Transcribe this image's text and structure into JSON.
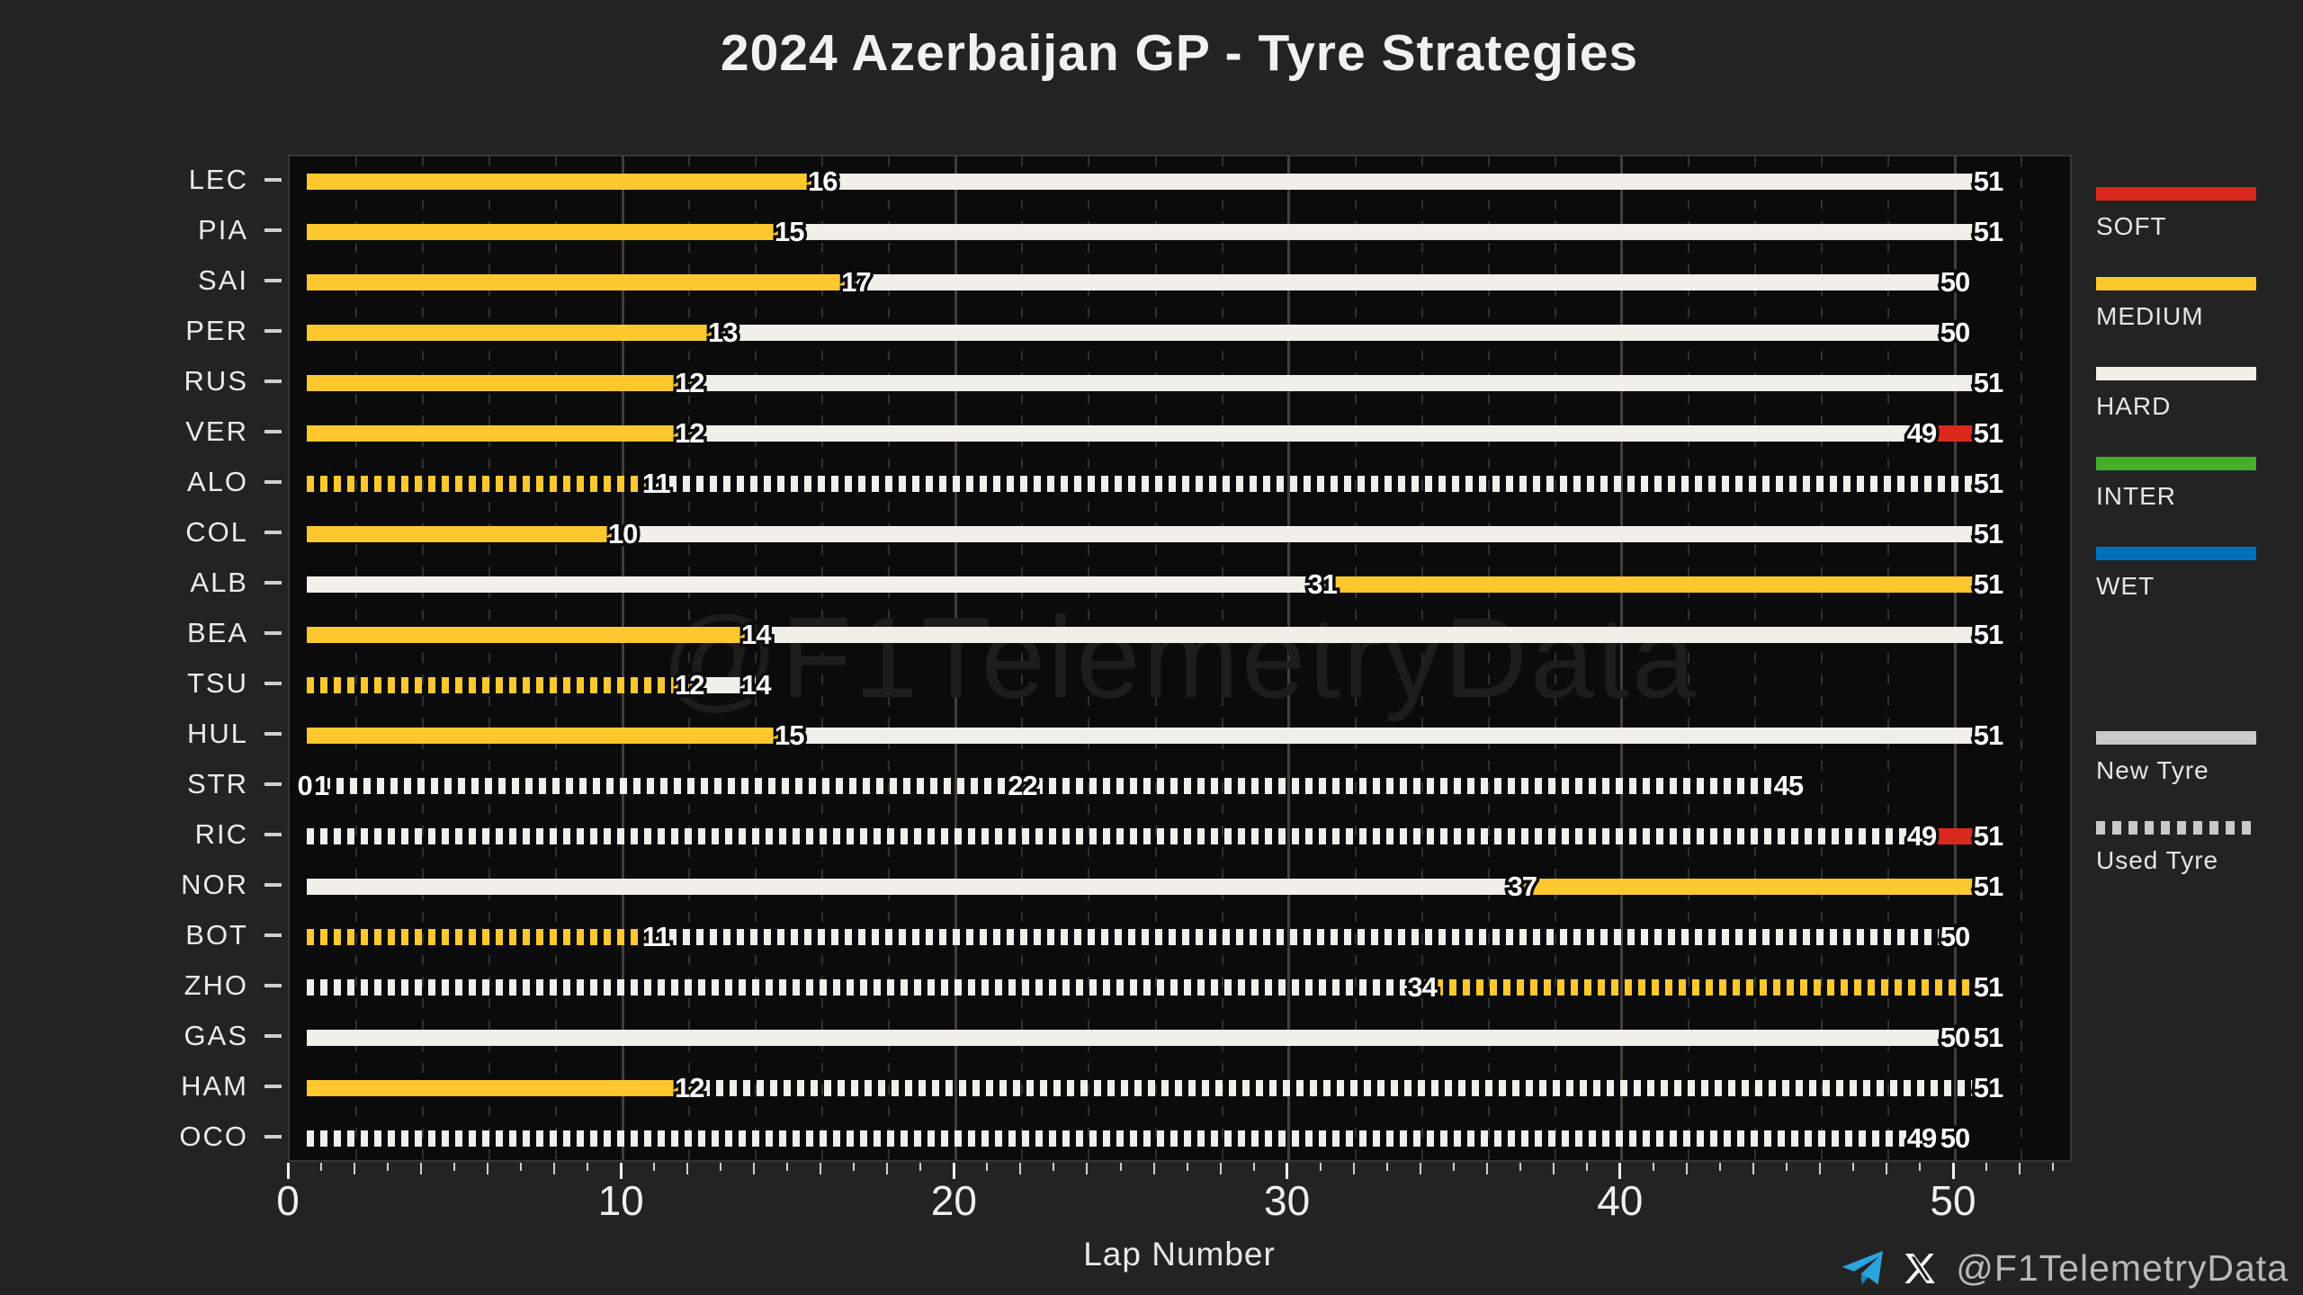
{
  "title": "2024 Azerbaijan GP - Tyre Strategies",
  "watermark": "@F1TelemetryData",
  "footer": {
    "handle": "@F1TelemetryData",
    "telegram_icon_color": "#2aa4dd",
    "x_icon_color": "#ffffff"
  },
  "colors": {
    "soft": "#da291c",
    "medium": "#fdc82d",
    "hard": "#f0efe9",
    "inter": "#44b02a",
    "wet": "#0072bc",
    "figure_bg": "#232323",
    "plot_bg": "#0b0b0b",
    "legend_swatch": "#c9c9c9"
  },
  "legend": {
    "compounds": [
      {
        "key": "S",
        "label": "SOFT",
        "color": "#da291c"
      },
      {
        "key": "M",
        "label": "MEDIUM",
        "color": "#fdc82d"
      },
      {
        "key": "H",
        "label": "HARD",
        "color": "#f0efe9"
      },
      {
        "key": "I",
        "label": "INTER",
        "color": "#44b02a"
      },
      {
        "key": "W",
        "label": "WET",
        "color": "#0072bc"
      }
    ],
    "usage": [
      {
        "label": "New Tyre",
        "style": "solid"
      },
      {
        "label": "Used Tyre",
        "style": "dashed"
      }
    ],
    "swatch_color": "#c9c9c9"
  },
  "chart_data": {
    "type": "bar",
    "subtype": "horizontal-timeline-gantt",
    "title": "2024 Azerbaijan GP - Tyre Strategies",
    "xlabel": "Lap Number",
    "ylabel": "",
    "xlim": [
      0,
      53.5
    ],
    "xticks": [
      0,
      10,
      20,
      30,
      40,
      50
    ],
    "grid": true,
    "legend_position": "right",
    "drivers": [
      {
        "code": "LEC",
        "stints": [
          {
            "c": "M",
            "u": false,
            "s": 0,
            "e": 16,
            "l": "16"
          },
          {
            "c": "H",
            "u": false,
            "s": 16,
            "e": 51,
            "l": "51"
          }
        ]
      },
      {
        "code": "PIA",
        "stints": [
          {
            "c": "M",
            "u": false,
            "s": 0,
            "e": 15,
            "l": "15"
          },
          {
            "c": "H",
            "u": false,
            "s": 15,
            "e": 51,
            "l": "51"
          }
        ]
      },
      {
        "code": "SAI",
        "stints": [
          {
            "c": "M",
            "u": false,
            "s": 0,
            "e": 17,
            "l": "17"
          },
          {
            "c": "H",
            "u": false,
            "s": 17,
            "e": 50,
            "l": "50"
          }
        ]
      },
      {
        "code": "PER",
        "stints": [
          {
            "c": "M",
            "u": false,
            "s": 0,
            "e": 13,
            "l": "13"
          },
          {
            "c": "H",
            "u": false,
            "s": 13,
            "e": 50,
            "l": "50"
          }
        ]
      },
      {
        "code": "RUS",
        "stints": [
          {
            "c": "M",
            "u": false,
            "s": 0,
            "e": 12,
            "l": "12"
          },
          {
            "c": "H",
            "u": false,
            "s": 12,
            "e": 51,
            "l": "51"
          }
        ]
      },
      {
        "code": "VER",
        "stints": [
          {
            "c": "M",
            "u": false,
            "s": 0,
            "e": 12,
            "l": "12"
          },
          {
            "c": "H",
            "u": false,
            "s": 12,
            "e": 49,
            "l": "49"
          },
          {
            "c": "S",
            "u": false,
            "s": 49,
            "e": 51,
            "l": "51"
          }
        ]
      },
      {
        "code": "ALO",
        "stints": [
          {
            "c": "M",
            "u": true,
            "s": 0,
            "e": 11,
            "l": "11"
          },
          {
            "c": "H",
            "u": true,
            "s": 11,
            "e": 51,
            "l": "51"
          }
        ]
      },
      {
        "code": "COL",
        "stints": [
          {
            "c": "M",
            "u": false,
            "s": 0,
            "e": 10,
            "l": "10"
          },
          {
            "c": "H",
            "u": false,
            "s": 10,
            "e": 51,
            "l": "51"
          }
        ]
      },
      {
        "code": "ALB",
        "stints": [
          {
            "c": "H",
            "u": false,
            "s": 0,
            "e": 31,
            "l": "31"
          },
          {
            "c": "M",
            "u": false,
            "s": 31,
            "e": 51,
            "l": "51"
          }
        ]
      },
      {
        "code": "BEA",
        "stints": [
          {
            "c": "M",
            "u": false,
            "s": 0,
            "e": 14,
            "l": "14"
          },
          {
            "c": "H",
            "u": false,
            "s": 14,
            "e": 51,
            "l": "51"
          }
        ]
      },
      {
        "code": "TSU",
        "stints": [
          {
            "c": "M",
            "u": true,
            "s": 0,
            "e": 12,
            "l": "12"
          },
          {
            "c": "H",
            "u": false,
            "s": 12,
            "e": 14,
            "l": "14"
          }
        ]
      },
      {
        "code": "HUL",
        "stints": [
          {
            "c": "M",
            "u": false,
            "s": 0,
            "e": 15,
            "l": "15"
          },
          {
            "c": "H",
            "u": false,
            "s": 15,
            "e": 51,
            "l": "51"
          }
        ]
      },
      {
        "code": "STR",
        "stints": [
          {
            "c": null,
            "u": false,
            "s": 0,
            "e": 0.45,
            "l": "0"
          },
          {
            "c": null,
            "u": false,
            "s": 0,
            "e": 0.95,
            "l": "1"
          },
          {
            "c": "H",
            "u": true,
            "s": 1,
            "e": 22,
            "l": "22"
          },
          {
            "c": "H",
            "u": true,
            "s": 22,
            "e": 45,
            "l": "45"
          }
        ]
      },
      {
        "code": "RIC",
        "stints": [
          {
            "c": "H",
            "u": true,
            "s": 0,
            "e": 49,
            "l": "49"
          },
          {
            "c": "S",
            "u": false,
            "s": 49,
            "e": 51,
            "l": "51"
          }
        ]
      },
      {
        "code": "NOR",
        "stints": [
          {
            "c": "H",
            "u": false,
            "s": 0,
            "e": 37,
            "l": "37"
          },
          {
            "c": "M",
            "u": false,
            "s": 37,
            "e": 51,
            "l": "51"
          }
        ]
      },
      {
        "code": "BOT",
        "stints": [
          {
            "c": "M",
            "u": true,
            "s": 0,
            "e": 11,
            "l": "11"
          },
          {
            "c": "H",
            "u": true,
            "s": 11,
            "e": 50,
            "l": "50"
          }
        ]
      },
      {
        "code": "ZHO",
        "stints": [
          {
            "c": "H",
            "u": true,
            "s": 0,
            "e": 34,
            "l": "34"
          },
          {
            "c": "M",
            "u": true,
            "s": 34,
            "e": 51,
            "l": "51"
          }
        ]
      },
      {
        "code": "GAS",
        "stints": [
          {
            "c": "H",
            "u": false,
            "s": 0,
            "e": 50,
            "l": "50"
          },
          {
            "c": null,
            "u": false,
            "s": 50,
            "e": 51,
            "l": "51"
          }
        ]
      },
      {
        "code": "HAM",
        "stints": [
          {
            "c": "M",
            "u": false,
            "s": 0,
            "e": 12,
            "l": "12"
          },
          {
            "c": "H",
            "u": true,
            "s": 12,
            "e": 51,
            "l": "51"
          }
        ]
      },
      {
        "code": "OCO",
        "stints": [
          {
            "c": "H",
            "u": true,
            "s": 0,
            "e": 49,
            "l": "49"
          },
          {
            "c": null,
            "u": false,
            "s": 49,
            "e": 50,
            "l": "50"
          }
        ]
      }
    ]
  }
}
